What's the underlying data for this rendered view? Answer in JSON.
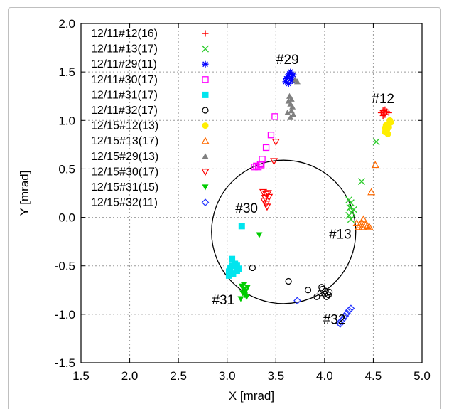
{
  "chart_data": {
    "type": "scatter",
    "xlabel": "X [mrad]",
    "ylabel": "Y [mrad]",
    "xlim": [
      1.5,
      5.0
    ],
    "ylim": [
      -1.5,
      2.0
    ],
    "x_ticks": [
      "1.5",
      "2.0",
      "2.5",
      "3.0",
      "3.5",
      "4.0",
      "4.5",
      "5.0"
    ],
    "y_ticks": [
      "-1.5",
      "-1.0",
      "-0.5",
      "0.0",
      "0.5",
      "1.0",
      "1.5",
      "2.0"
    ],
    "grid": true,
    "legend_position": "top-left",
    "circle": {
      "center": [
        3.58,
        -0.15
      ],
      "radius": 0.74
    },
    "annotations": [
      {
        "text": "#29",
        "x": 3.62,
        "y": 1.58
      },
      {
        "text": "#12",
        "x": 4.6,
        "y": 1.18
      },
      {
        "text": "#30",
        "x": 3.2,
        "y": 0.05
      },
      {
        "text": "#13",
        "x": 4.16,
        "y": -0.22
      },
      {
        "text": "#31",
        "x": 2.96,
        "y": -0.9
      },
      {
        "text": "#32",
        "x": 4.1,
        "y": -1.1
      }
    ],
    "series": [
      {
        "name": "12/11#12(16)",
        "marker": "plus",
        "color": "#ff0000",
        "points": [
          [
            4.58,
            1.08
          ],
          [
            4.6,
            1.1
          ],
          [
            4.62,
            1.06
          ],
          [
            4.64,
            1.09
          ],
          [
            4.6,
            1.05
          ],
          [
            4.66,
            1.08
          ],
          [
            4.62,
            1.11
          ]
        ]
      },
      {
        "name": "12/11#13(17)",
        "marker": "cross",
        "color": "#2ecc2e",
        "points": [
          [
            4.25,
            0.18
          ],
          [
            4.27,
            0.15
          ],
          [
            4.26,
            0.1
          ],
          [
            4.28,
            0.05
          ],
          [
            4.25,
            0.02
          ],
          [
            4.27,
            -0.02
          ],
          [
            4.3,
            0.08
          ],
          [
            4.38,
            0.37
          ],
          [
            4.53,
            0.78
          ]
        ]
      },
      {
        "name": "12/11#29(11)",
        "marker": "asterisk",
        "color": "#0000ff",
        "points": [
          [
            3.6,
            1.4
          ],
          [
            3.62,
            1.45
          ],
          [
            3.64,
            1.48
          ],
          [
            3.66,
            1.44
          ],
          [
            3.68,
            1.47
          ],
          [
            3.63,
            1.38
          ],
          [
            3.61,
            1.43
          ],
          [
            3.65,
            1.5
          ],
          [
            3.67,
            1.41
          ]
        ]
      },
      {
        "name": "12/11#30(17)",
        "marker": "square-open",
        "color": "#ff00ff",
        "points": [
          [
            3.28,
            0.52
          ],
          [
            3.3,
            0.53
          ],
          [
            3.32,
            0.52
          ],
          [
            3.35,
            0.54
          ],
          [
            3.34,
            0.55
          ],
          [
            3.36,
            0.6
          ],
          [
            3.4,
            0.72
          ],
          [
            3.45,
            0.85
          ],
          [
            3.49,
            1.04
          ]
        ]
      },
      {
        "name": "12/11#31(17)",
        "marker": "square-filled",
        "color": "#00e5ee",
        "points": [
          [
            3.15,
            -0.09
          ],
          [
            3.05,
            -0.43
          ],
          [
            3.08,
            -0.48
          ],
          [
            3.1,
            -0.5
          ],
          [
            3.03,
            -0.52
          ],
          [
            3.12,
            -0.53
          ],
          [
            3.02,
            -0.56
          ],
          [
            3.06,
            -0.58
          ],
          [
            3.1,
            -0.55
          ],
          [
            3.02,
            -0.6
          ],
          [
            3.05,
            -0.5
          ]
        ]
      },
      {
        "name": "12/11#32(17)",
        "marker": "circle-open",
        "color": "#000000",
        "points": [
          [
            3.26,
            -0.52
          ],
          [
            3.63,
            -0.66
          ],
          [
            3.83,
            -0.75
          ],
          [
            3.92,
            -0.82
          ],
          [
            3.96,
            -0.78
          ],
          [
            3.98,
            -0.74
          ],
          [
            4.0,
            -0.79
          ],
          [
            4.02,
            -0.82
          ],
          [
            4.04,
            -0.8
          ],
          [
            3.97,
            -0.72
          ],
          [
            4.01,
            -0.76
          ],
          [
            4.05,
            -0.77
          ]
        ]
      },
      {
        "name": "12/15#12(13)",
        "marker": "circle-filled",
        "color": "#ffee00",
        "points": [
          [
            4.62,
            0.88
          ],
          [
            4.64,
            0.9
          ],
          [
            4.66,
            0.93
          ],
          [
            4.65,
            0.96
          ],
          [
            4.67,
            1.0
          ],
          [
            4.63,
            0.95
          ],
          [
            4.62,
            0.92
          ],
          [
            4.68,
            0.98
          ],
          [
            4.65,
            0.86
          ]
        ]
      },
      {
        "name": "12/15#13(17)",
        "marker": "triangle-up-open",
        "color": "#ff6a00",
        "points": [
          [
            4.33,
            -0.06
          ],
          [
            4.36,
            -0.08
          ],
          [
            4.38,
            -0.05
          ],
          [
            4.4,
            -0.02
          ],
          [
            4.42,
            -0.08
          ],
          [
            4.44,
            -0.09
          ],
          [
            4.39,
            -0.1
          ],
          [
            4.35,
            -0.1
          ],
          [
            4.46,
            -0.1
          ],
          [
            4.48,
            0.26
          ],
          [
            4.52,
            0.54
          ]
        ]
      },
      {
        "name": "12/15#29(13)",
        "marker": "triangle-up-filled",
        "color": "#808080",
        "points": [
          [
            3.63,
            1.2
          ],
          [
            3.65,
            1.17
          ],
          [
            3.67,
            1.14
          ],
          [
            3.64,
            1.25
          ],
          [
            3.66,
            1.1
          ],
          [
            3.62,
            1.08
          ],
          [
            3.68,
            1.06
          ],
          [
            3.65,
            1.03
          ],
          [
            3.72,
            1.4
          ],
          [
            3.7,
            1.42
          ],
          [
            3.66,
            1.22
          ]
        ]
      },
      {
        "name": "12/15#30(17)",
        "marker": "triangle-down-open",
        "color": "#ff0000",
        "points": [
          [
            3.37,
            0.26
          ],
          [
            3.4,
            0.24
          ],
          [
            3.42,
            0.25
          ],
          [
            3.38,
            0.17
          ],
          [
            3.4,
            0.14
          ],
          [
            3.41,
            0.11
          ],
          [
            3.43,
            0.21
          ],
          [
            3.39,
            0.2
          ],
          [
            3.48,
            0.58
          ],
          [
            3.5,
            0.78
          ]
        ]
      },
      {
        "name": "12/15#31(15)",
        "marker": "triangle-down-filled",
        "color": "#00cc00",
        "points": [
          [
            3.33,
            -0.18
          ],
          [
            3.15,
            -0.71
          ],
          [
            3.17,
            -0.74
          ],
          [
            3.19,
            -0.76
          ],
          [
            3.16,
            -0.78
          ],
          [
            3.18,
            -0.8
          ],
          [
            3.2,
            -0.82
          ],
          [
            3.14,
            -0.84
          ],
          [
            3.21,
            -0.72
          ],
          [
            3.17,
            -0.69
          ]
        ]
      },
      {
        "name": "12/15#32(11)",
        "marker": "diamond-open",
        "color": "#2233ff",
        "points": [
          [
            3.72,
            -0.86
          ],
          [
            4.15,
            -1.09
          ],
          [
            4.17,
            -1.07
          ],
          [
            4.19,
            -1.05
          ],
          [
            4.21,
            -1.02
          ],
          [
            4.23,
            -0.99
          ],
          [
            4.25,
            -0.96
          ],
          [
            4.27,
            -0.94
          ],
          [
            4.16,
            -1.1
          ]
        ]
      }
    ]
  }
}
